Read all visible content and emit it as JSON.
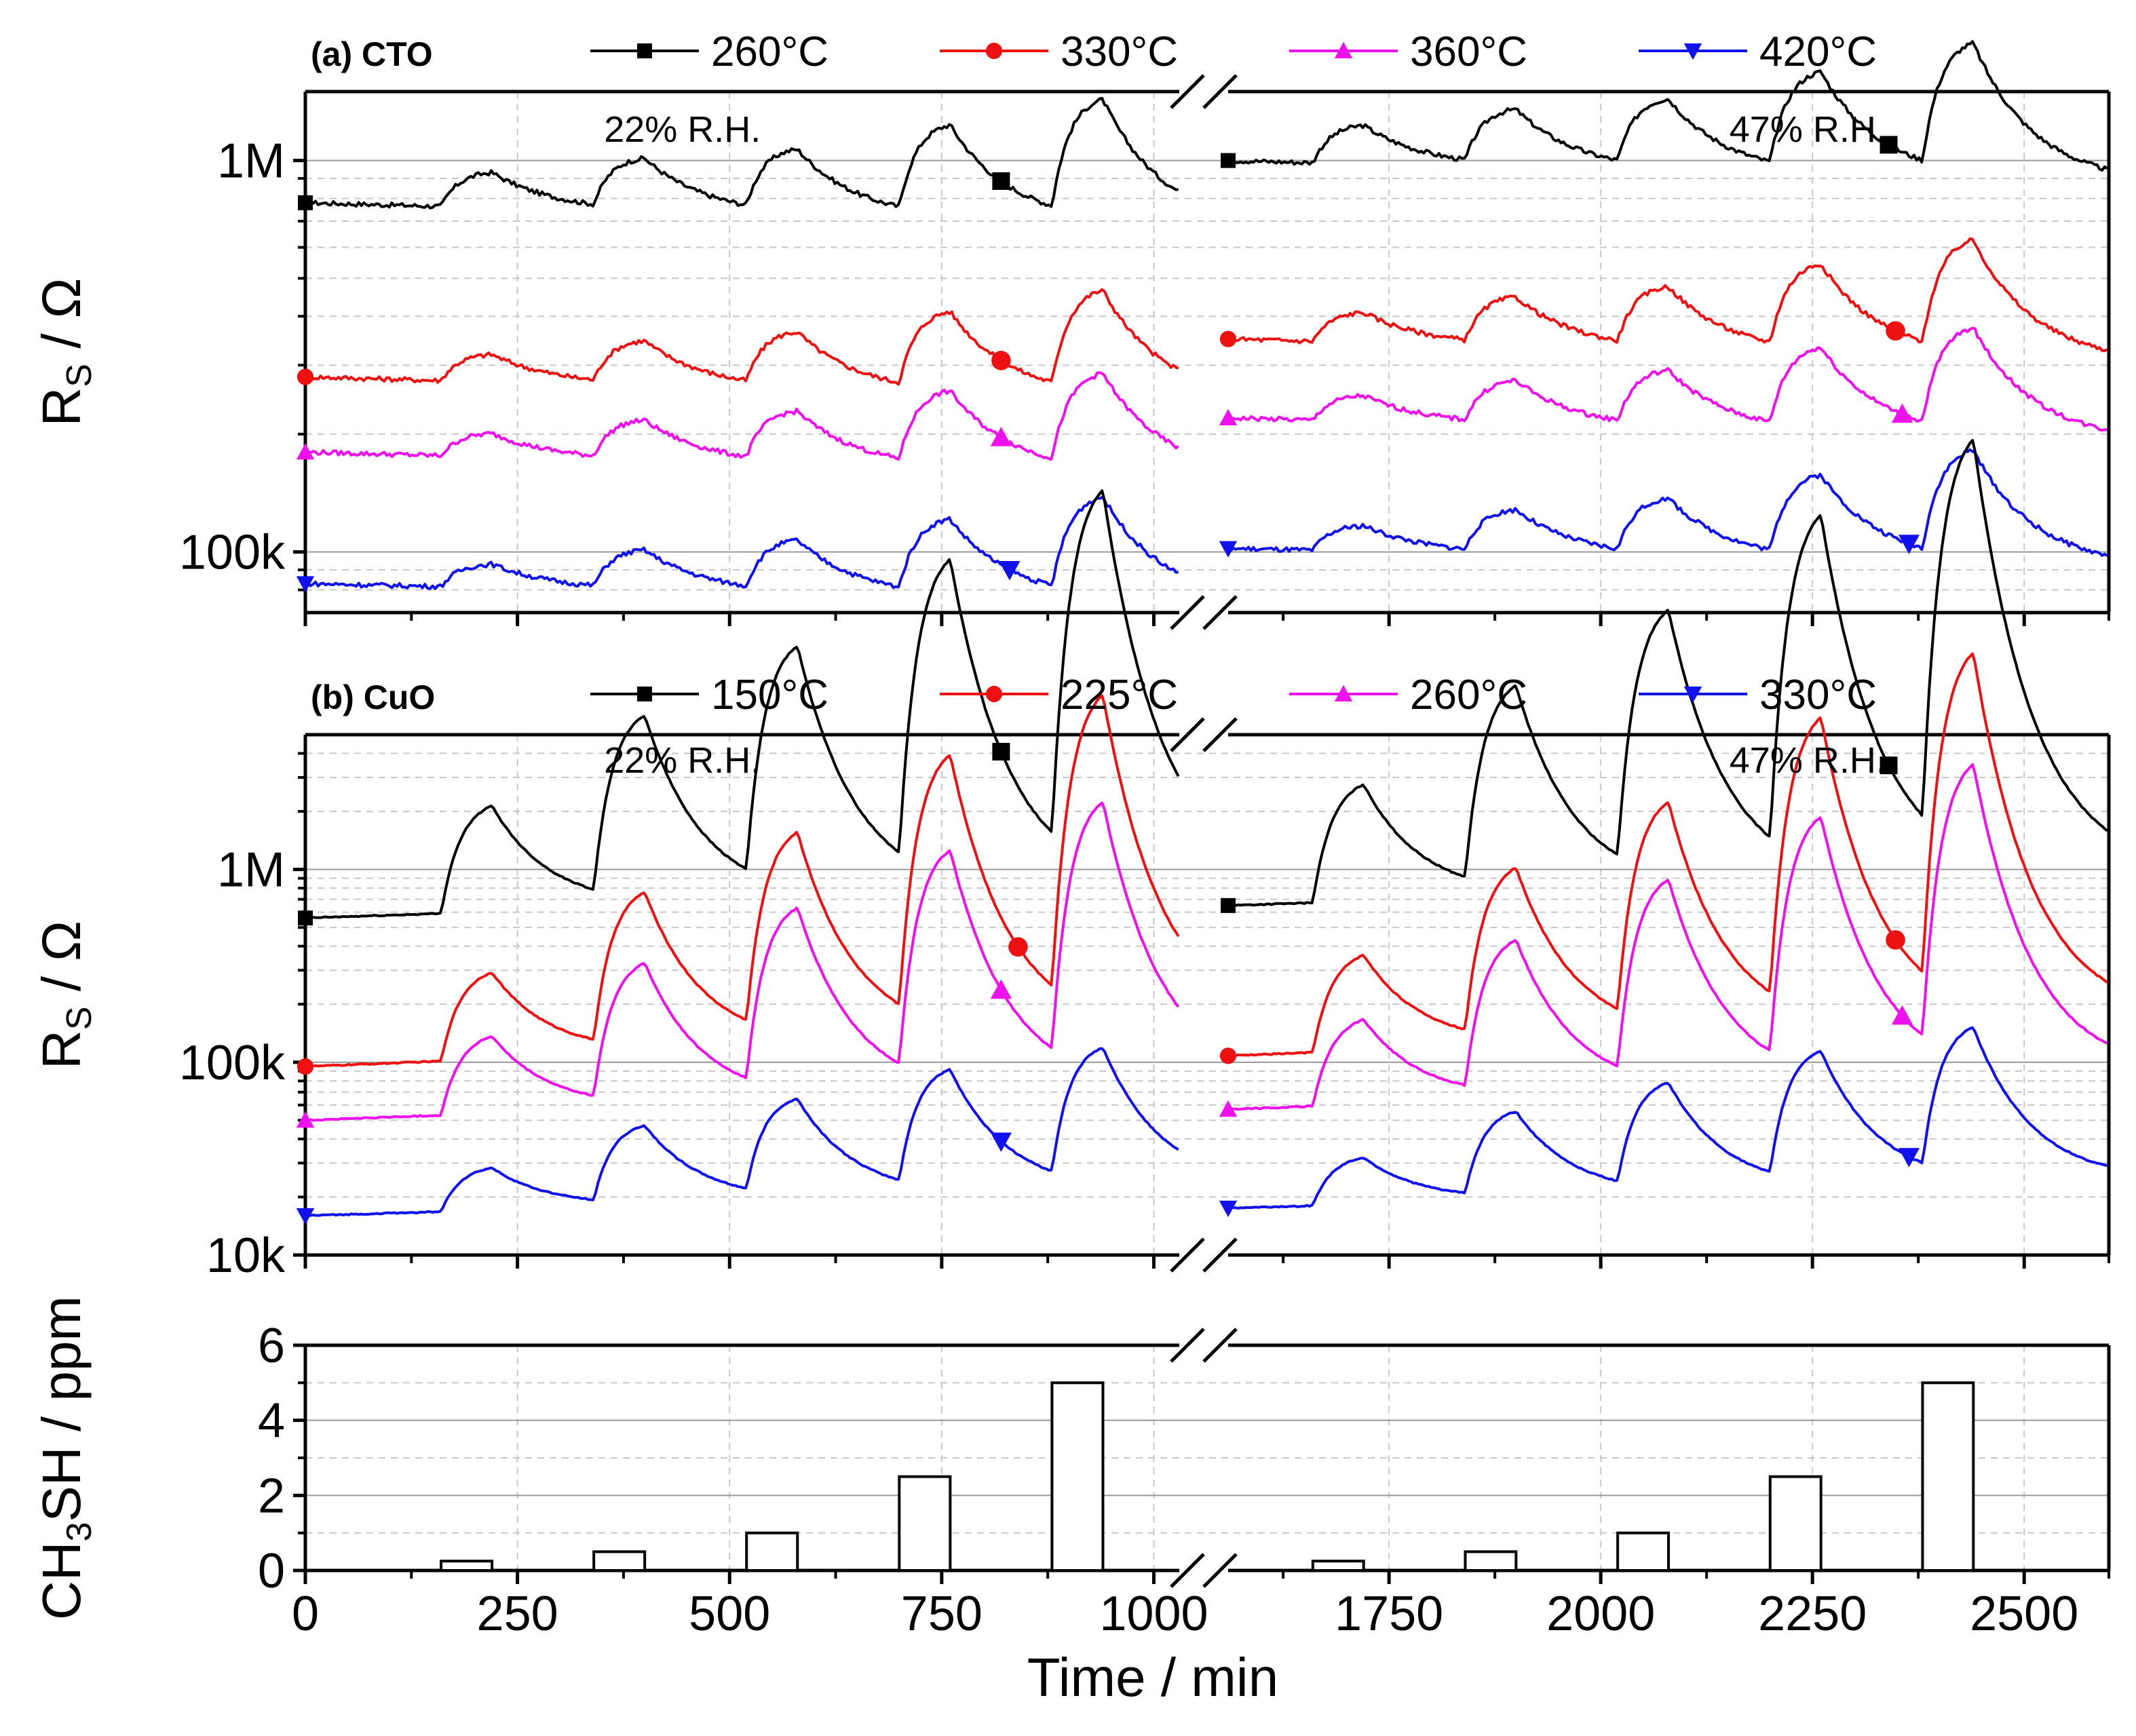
{
  "chart_data": [
    {
      "id": "a",
      "type": "line",
      "panel_label": "(a) CTO",
      "ylabel": "R",
      "ylabel_sub": "S",
      "ylabel_unit": " / Ω",
      "yscale": "log",
      "ylim": [
        70000,
        1500000
      ],
      "yticks": [
        {
          "v": 100000,
          "label": "100k"
        },
        {
          "v": 1000000,
          "label": "1M"
        }
      ],
      "annotations": [
        {
          "text": "22% R.H.",
          "x": 400,
          "y": 1030000
        },
        {
          "text": "47% R.H.",
          "x": 2200,
          "y": 1030000
        }
      ],
      "series": [
        {
          "name": "260°C",
          "color": "#000000",
          "marker": "square",
          "base_seg1": 780000,
          "base_seg2": 1000000,
          "drift": -0.1,
          "resp": [
            0.09,
            0.13,
            0.16,
            0.23,
            0.3
          ],
          "marker_x": 820
        },
        {
          "name": "330°C",
          "color": "#ee1111",
          "marker": "circle",
          "base_seg1": 280000,
          "base_seg2": 350000,
          "drift": -0.1,
          "resp": [
            0.07,
            0.11,
            0.14,
            0.2,
            0.26
          ],
          "marker_x": 820
        },
        {
          "name": "360°C",
          "color": "#ee11ee",
          "marker": "triangle-up",
          "base_seg1": 180000,
          "base_seg2": 220000,
          "drift": -0.1,
          "resp": [
            0.06,
            0.1,
            0.13,
            0.19,
            0.24
          ],
          "marker_x": 820
        },
        {
          "name": "420°C",
          "color": "#1111ee",
          "marker": "triangle-down",
          "base_seg1": 83000,
          "base_seg2": 102000,
          "drift": -0.08,
          "resp": [
            0.06,
            0.1,
            0.13,
            0.19,
            0.25
          ],
          "marker_x": 830
        }
      ]
    },
    {
      "id": "b",
      "type": "line",
      "panel_label": "(b) CuO",
      "ylabel": "R",
      "ylabel_sub": "S",
      "ylabel_unit": " / Ω",
      "yscale": "log",
      "ylim": [
        10000,
        5000000
      ],
      "yticks": [
        {
          "v": 10000,
          "label": "10k"
        },
        {
          "v": 100000,
          "label": "100k"
        },
        {
          "v": 1000000,
          "label": "1M"
        }
      ],
      "annotations": [
        {
          "text": "22% R.H.",
          "x": 400,
          "y": 2700000
        },
        {
          "text": "47% R.H.",
          "x": 2200,
          "y": 2700000
        }
      ],
      "series": [
        {
          "name": "150°C",
          "color": "#000000",
          "marker": "square",
          "base_seg1": 560000,
          "base_seg2": 650000,
          "drift": 0.25,
          "resp": [
            0.55,
            0.95,
            1.25,
            1.65,
            1.95
          ],
          "marker_x": 820
        },
        {
          "name": "225°C",
          "color": "#ee1111",
          "marker": "circle",
          "base_seg1": 95000,
          "base_seg2": 108000,
          "drift": 0.3,
          "resp": [
            0.45,
            0.8,
            1.05,
            1.4,
            1.65
          ],
          "marker_x": 840
        },
        {
          "name": "260°C",
          "color": "#ee11ee",
          "marker": "triangle-up",
          "base_seg1": 50000,
          "base_seg2": 57000,
          "drift": 0.28,
          "resp": [
            0.4,
            0.72,
            0.95,
            1.2,
            1.4
          ],
          "marker_x": 820
        },
        {
          "name": "330°C",
          "color": "#1111ee",
          "marker": "triangle-down",
          "base_seg1": 16000,
          "base_seg2": 17500,
          "drift": 0.22,
          "resp": [
            0.22,
            0.4,
            0.5,
            0.62,
            0.7
          ],
          "marker_x": 820
        }
      ]
    },
    {
      "id": "c",
      "type": "bar",
      "ylabel": "CH",
      "ylabel_sub": "3",
      "ylabel_unit": "SH / ppm",
      "xlabel": "Time / min",
      "ylim": [
        0,
        6
      ],
      "yticks": [
        {
          "v": 0,
          "label": "0"
        },
        {
          "v": 2,
          "label": "2"
        },
        {
          "v": 4,
          "label": "4"
        },
        {
          "v": 6,
          "label": "6"
        }
      ],
      "bars": [
        {
          "x0": 160,
          "x1": 220,
          "value": 0.25
        },
        {
          "x0": 340,
          "x1": 400,
          "value": 0.5
        },
        {
          "x0": 520,
          "x1": 580,
          "value": 1.0
        },
        {
          "x0": 700,
          "x1": 760,
          "value": 2.5
        },
        {
          "x0": 880,
          "x1": 940,
          "value": 5.0
        },
        {
          "x0": 1660,
          "x1": 1720,
          "value": 0.25
        },
        {
          "x0": 1840,
          "x1": 1900,
          "value": 0.5
        },
        {
          "x0": 2020,
          "x1": 2080,
          "value": 1.0
        },
        {
          "x0": 2200,
          "x1": 2260,
          "value": 2.5
        },
        {
          "x0": 2380,
          "x1": 2440,
          "value": 5.0
        }
      ]
    }
  ],
  "x_axis": {
    "segments": [
      [
        0,
        1030
      ],
      [
        1560,
        2600
      ]
    ],
    "tick_labels": [
      {
        "v": 0,
        "label": "0"
      },
      {
        "v": 250,
        "label": "250"
      },
      {
        "v": 500,
        "label": "500"
      },
      {
        "v": 750,
        "label": "750"
      },
      {
        "v": 1000,
        "label": "1000"
      },
      {
        "v": 1750,
        "label": "1750"
      },
      {
        "v": 2000,
        "label": "2000"
      },
      {
        "v": 2250,
        "label": "2250"
      },
      {
        "v": 2500,
        "label": "2500"
      }
    ],
    "xlabel": "Time / min"
  },
  "exposure_windows": {
    "seg1": [
      [
        160,
        220
      ],
      [
        340,
        400
      ],
      [
        520,
        580
      ],
      [
        700,
        760
      ],
      [
        880,
        940
      ]
    ],
    "seg2": [
      [
        1660,
        1720
      ],
      [
        1840,
        1900
      ],
      [
        2020,
        2080
      ],
      [
        2200,
        2260
      ],
      [
        2380,
        2440
      ]
    ]
  }
}
